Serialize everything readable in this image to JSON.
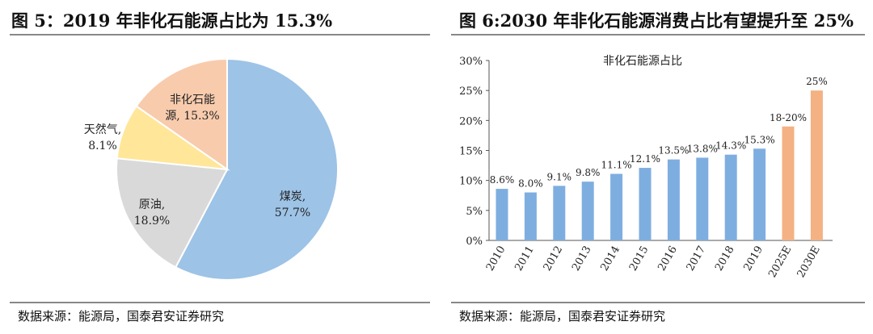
{
  "left": {
    "title": "图 5：2019 年非化石能源占比为 15.3%",
    "source": "数据来源：能源局，国泰君安证券研究"
  },
  "right": {
    "title": "图 6:2030 年非化石能源消费占比有望提升至 25%",
    "source": "数据来源：能源局，国泰君安证券研究"
  },
  "chart_data": [
    {
      "type": "pie",
      "title": "",
      "slices": [
        {
          "label": "煤炭,",
          "value_label": "57.7%",
          "value": 57.7,
          "color": "#9dc3e6"
        },
        {
          "label": "原油,",
          "value_label": "18.9%",
          "value": 18.9,
          "color": "#d9d9d9"
        },
        {
          "label": "天然气,",
          "value_label": "8.1%",
          "value": 8.1,
          "color": "#ffe699"
        },
        {
          "label": "非化石能",
          "value_label": "源, 15.3%",
          "value": 15.3,
          "color": "#f8cbad"
        }
      ]
    },
    {
      "type": "bar",
      "title": "非化石能源占比",
      "categories": [
        "2010",
        "2011",
        "2012",
        "2013",
        "2014",
        "2015",
        "2016",
        "2017",
        "2018",
        "2019",
        "2025E",
        "2030E"
      ],
      "values": [
        8.6,
        8.0,
        9.1,
        9.8,
        11.1,
        12.1,
        13.5,
        13.8,
        14.3,
        15.3,
        19,
        25
      ],
      "labels": [
        "8.6%",
        "8.0%",
        "9.1%",
        "9.8%",
        "11.1%",
        "12.1%",
        "13.5%",
        "13.8%",
        "14.3%",
        "15.3%",
        "18-20%",
        "25%"
      ],
      "ylim": [
        0,
        30
      ],
      "yticks": [
        "0%",
        "5%",
        "10%",
        "15%",
        "20%",
        "25%",
        "30%"
      ],
      "colors": {
        "actual": "#7eaee0",
        "forecast": "#f4b183"
      },
      "forecast_from_index": 10
    }
  ]
}
